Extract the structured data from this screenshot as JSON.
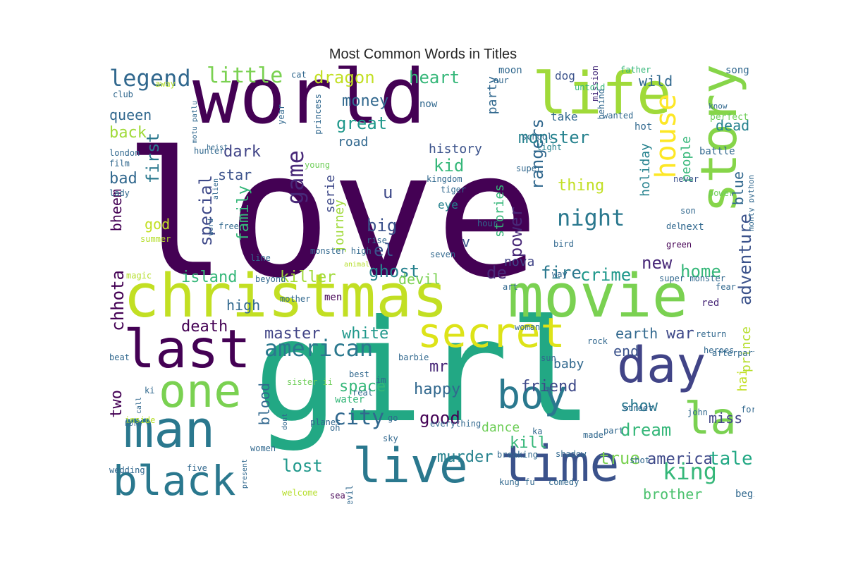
{
  "chart_data": {
    "type": "wordcloud",
    "title": "Most Common Words in Titles",
    "words": [
      {
        "text": "love",
        "color": "#440154"
      },
      {
        "text": "girl",
        "color": "#22a884"
      },
      {
        "text": "world",
        "color": "#440154"
      },
      {
        "text": "christmas",
        "color": "#c2df23"
      },
      {
        "text": "movie",
        "color": "#7ad151"
      },
      {
        "text": "life",
        "color": "#a0da39"
      },
      {
        "text": "story",
        "color": "#86d549"
      },
      {
        "text": "time",
        "color": "#3b528b"
      },
      {
        "text": "live",
        "color": "#2a788e"
      },
      {
        "text": "man",
        "color": "#2a788e"
      },
      {
        "text": "black",
        "color": "#2a788e"
      },
      {
        "text": "day",
        "color": "#414487"
      },
      {
        "text": "one",
        "color": "#7ad151"
      },
      {
        "text": "last",
        "color": "#440154"
      },
      {
        "text": "secret",
        "color": "#dde318"
      },
      {
        "text": "boy",
        "color": "#2a788e"
      },
      {
        "text": "house",
        "color": "#fde725"
      },
      {
        "text": "la",
        "color": "#7ad151"
      },
      {
        "text": "legend",
        "color": "#31688e"
      },
      {
        "text": "little",
        "color": "#7ad151"
      },
      {
        "text": "american",
        "color": "#2a788e"
      },
      {
        "text": "night",
        "color": "#2a788e"
      },
      {
        "text": "game",
        "color": "#482878"
      },
      {
        "text": "city",
        "color": "#31688e"
      },
      {
        "text": "king",
        "color": "#35b779"
      },
      {
        "text": "tale",
        "color": "#22a884"
      },
      {
        "text": "adventure",
        "color": "#3b528b"
      },
      {
        "text": "rangers",
        "color": "#31688e"
      },
      {
        "text": "power",
        "color": "#482878"
      },
      {
        "text": "dragon",
        "color": "#c2df23"
      },
      {
        "text": "heart",
        "color": "#35b779"
      },
      {
        "text": "money",
        "color": "#31688e"
      },
      {
        "text": "great",
        "color": "#1f988b"
      },
      {
        "text": "kid",
        "color": "#35b779"
      },
      {
        "text": "monster",
        "color": "#26828e"
      },
      {
        "text": "dark",
        "color": "#414487"
      },
      {
        "text": "star",
        "color": "#3b528b"
      },
      {
        "text": "first",
        "color": "#2a788e"
      },
      {
        "text": "special",
        "color": "#3e4989"
      },
      {
        "text": "family",
        "color": "#35b779"
      },
      {
        "text": "big",
        "color": "#3b528b"
      },
      {
        "text": "el",
        "color": "#3b528b"
      },
      {
        "text": "u",
        "color": "#3e4989"
      },
      {
        "text": "ghost",
        "color": "#26828e"
      },
      {
        "text": "de",
        "color": "#482878"
      },
      {
        "text": "fire",
        "color": "#2a788e"
      },
      {
        "text": "crime",
        "color": "#1f988b"
      },
      {
        "text": "home",
        "color": "#35b779"
      },
      {
        "text": "new",
        "color": "#482878"
      },
      {
        "text": "queen",
        "color": "#31688e"
      },
      {
        "text": "back",
        "color": "#a0da39"
      },
      {
        "text": "bad",
        "color": "#31688e"
      },
      {
        "text": "god",
        "color": "#c2df23"
      },
      {
        "text": "bheem",
        "color": "#440154"
      },
      {
        "text": "chhota",
        "color": "#440154"
      },
      {
        "text": "island",
        "color": "#35b779"
      },
      {
        "text": "killer",
        "color": "#a0da39"
      },
      {
        "text": "devil",
        "color": "#7ad151"
      },
      {
        "text": "high",
        "color": "#31688e"
      },
      {
        "text": "death",
        "color": "#440154"
      },
      {
        "text": "master",
        "color": "#414487"
      },
      {
        "text": "white",
        "color": "#1f988b"
      },
      {
        "text": "war",
        "color": "#3e4989"
      },
      {
        "text": "earth",
        "color": "#31688e"
      },
      {
        "text": "end",
        "color": "#3b528b"
      },
      {
        "text": "mr",
        "color": "#482878"
      },
      {
        "text": "space",
        "color": "#35b779"
      },
      {
        "text": "happy",
        "color": "#31688e"
      },
      {
        "text": "friend",
        "color": "#3e4989"
      },
      {
        "text": "good",
        "color": "#440154"
      },
      {
        "text": "show",
        "color": "#2a788e"
      },
      {
        "text": "dream",
        "color": "#35b779"
      },
      {
        "text": "miss",
        "color": "#414487"
      },
      {
        "text": "america",
        "color": "#3e4989"
      },
      {
        "text": "true",
        "color": "#7ad151"
      },
      {
        "text": "murder",
        "color": "#26828e"
      },
      {
        "text": "kill",
        "color": "#35b779"
      },
      {
        "text": "dance",
        "color": "#6ece58"
      },
      {
        "text": "lost",
        "color": "#1f988b"
      },
      {
        "text": "blood",
        "color": "#31688e"
      },
      {
        "text": "two",
        "color": "#440154"
      },
      {
        "text": "brother",
        "color": "#4ac16d"
      },
      {
        "text": "thing",
        "color": "#c2df23"
      },
      {
        "text": "wild",
        "color": "#31688e"
      },
      {
        "text": "dead",
        "color": "#26828e"
      },
      {
        "text": "people",
        "color": "#35b779"
      },
      {
        "text": "blue",
        "color": "#31688e"
      },
      {
        "text": "holiday",
        "color": "#26828e"
      },
      {
        "text": "stories",
        "color": "#35b779"
      },
      {
        "text": "journey",
        "color": "#a0da39"
      },
      {
        "text": "serie",
        "color": "#3e4989"
      },
      {
        "text": "party",
        "color": "#31688e"
      },
      {
        "text": "road",
        "color": "#31688e"
      },
      {
        "text": "history",
        "color": "#3b528b"
      },
      {
        "text": "nova",
        "color": "#414487"
      },
      {
        "text": "prince",
        "color": "#b5de2b"
      },
      {
        "text": "hai",
        "color": "#c2df23"
      },
      {
        "text": "baby",
        "color": "#31688e"
      },
      {
        "text": "v",
        "color": "#3b528b"
      },
      {
        "text": "eye",
        "color": "#26828e"
      },
      {
        "text": "next",
        "color": "#31688e"
      },
      {
        "text": "song",
        "color": "#31688e"
      },
      {
        "text": "dog",
        "color": "#3b528b"
      },
      {
        "text": "moon",
        "color": "#31688e"
      },
      {
        "text": "mission",
        "color": "#472d7b"
      },
      {
        "text": "father",
        "color": "#35b779"
      },
      {
        "text": "now",
        "color": "#31688e"
      },
      {
        "text": "take",
        "color": "#31688e"
      },
      {
        "text": "hot",
        "color": "#31688e"
      },
      {
        "text": "battle",
        "color": "#31688e"
      },
      {
        "text": "know",
        "color": "#31688e"
      },
      {
        "text": "perfect",
        "color": "#6ece58"
      },
      {
        "text": "school",
        "color": "#31688e"
      },
      {
        "text": "light",
        "color": "#26828e"
      },
      {
        "text": "never",
        "color": "#3b528b"
      },
      {
        "text": "power",
        "color": "#6ece58"
      },
      {
        "text": "monty python",
        "color": "#31688e"
      },
      {
        "text": "super",
        "color": "#31688e"
      },
      {
        "text": "tiger",
        "color": "#31688e"
      },
      {
        "text": "kingdom",
        "color": "#31688e"
      },
      {
        "text": "son",
        "color": "#31688e"
      },
      {
        "text": "green",
        "color": "#440154"
      },
      {
        "text": "del",
        "color": "#31688e"
      },
      {
        "text": "bird",
        "color": "#31688e"
      },
      {
        "text": "hour",
        "color": "#31688e"
      },
      {
        "text": "rise",
        "color": "#31688e"
      },
      {
        "text": "seven",
        "color": "#31688e"
      },
      {
        "text": "line",
        "color": "#31688e"
      },
      {
        "text": "animal",
        "color": "#b5de2b"
      },
      {
        "text": "men",
        "color": "#440154"
      },
      {
        "text": "way",
        "color": "#31688e"
      },
      {
        "text": "art",
        "color": "#31688e"
      },
      {
        "text": "super monster",
        "color": "#31688e"
      },
      {
        "text": "fear",
        "color": "#31688e"
      },
      {
        "text": "red",
        "color": "#482878"
      },
      {
        "text": "woman",
        "color": "#31688e"
      },
      {
        "text": "return",
        "color": "#31688e"
      },
      {
        "text": "rock",
        "color": "#31688e"
      },
      {
        "text": "heroes",
        "color": "#31688e"
      },
      {
        "text": "sun",
        "color": "#31688e"
      },
      {
        "text": "afterparty",
        "color": "#31688e"
      },
      {
        "text": "barbie",
        "color": "#31688e"
      },
      {
        "text": "best",
        "color": "#31688e"
      },
      {
        "text": "im",
        "color": "#31688e"
      },
      {
        "text": "sister ii",
        "color": "#6ece58"
      },
      {
        "text": "real",
        "color": "#31688e"
      },
      {
        "text": "water",
        "color": "#35b779"
      },
      {
        "text": "go",
        "color": "#31688e"
      },
      {
        "text": "planet",
        "color": "#31688e"
      },
      {
        "text": "everything",
        "color": "#31688e"
      },
      {
        "text": "sky",
        "color": "#31688e"
      },
      {
        "text": "oh",
        "color": "#31688e"
      },
      {
        "text": "ka",
        "color": "#31688e"
      },
      {
        "text": "shadow",
        "color": "#31688e"
      },
      {
        "text": "breaking",
        "color": "#31688e"
      },
      {
        "text": "kung fu",
        "color": "#31688e"
      },
      {
        "text": "comedy",
        "color": "#31688e"
      },
      {
        "text": "made",
        "color": "#31688e"
      },
      {
        "text": "part",
        "color": "#31688e"
      },
      {
        "text": "shot",
        "color": "#31688e"
      },
      {
        "text": "john",
        "color": "#31688e"
      },
      {
        "text": "street",
        "color": "#31688e"
      },
      {
        "text": "force",
        "color": "#31688e"
      },
      {
        "text": "beginning",
        "color": "#31688e"
      },
      {
        "text": "welcome",
        "color": "#b5de2b"
      },
      {
        "text": "sea",
        "color": "#440154"
      },
      {
        "text": "evil",
        "color": "#31688e"
      },
      {
        "text": "five",
        "color": "#31688e"
      },
      {
        "text": "present",
        "color": "#31688e"
      },
      {
        "text": "wedding",
        "color": "#31688e"
      },
      {
        "text": "women",
        "color": "#31688e"
      },
      {
        "text": "inside",
        "color": "#b5de2b"
      },
      {
        "text": "born",
        "color": "#31688e"
      },
      {
        "text": "call",
        "color": "#31688e"
      },
      {
        "text": "dont",
        "color": "#31688e"
      },
      {
        "text": "ki",
        "color": "#31688e"
      },
      {
        "text": "beat",
        "color": "#31688e"
      },
      {
        "text": "beyond",
        "color": "#31688e"
      },
      {
        "text": "mother",
        "color": "#31688e"
      },
      {
        "text": "magic",
        "color": "#b5de2b"
      },
      {
        "text": "summer",
        "color": "#b5de2b"
      },
      {
        "text": "monster high",
        "color": "#31688e"
      },
      {
        "text": "free",
        "color": "#31688e"
      },
      {
        "text": "word",
        "color": "#31688e"
      },
      {
        "text": "alien",
        "color": "#31688e"
      },
      {
        "text": "lady",
        "color": "#31688e"
      },
      {
        "text": "film",
        "color": "#31688e"
      },
      {
        "text": "london",
        "color": "#31688e"
      },
      {
        "text": "hunter",
        "color": "#31688e"
      },
      {
        "text": "heist",
        "color": "#31688e"
      },
      {
        "text": "motu patlu",
        "color": "#31688e"
      },
      {
        "text": "princess",
        "color": "#31688e"
      },
      {
        "text": "year",
        "color": "#31688e"
      },
      {
        "text": "young",
        "color": "#6ece58"
      },
      {
        "text": "club",
        "color": "#31688e"
      },
      {
        "text": "away",
        "color": "#b5de2b"
      },
      {
        "text": "cat",
        "color": "#31688e"
      },
      {
        "text": "aur",
        "color": "#31688e"
      },
      {
        "text": "untold",
        "color": "#35b779"
      },
      {
        "text": "behind",
        "color": "#31688e"
      },
      {
        "text": "wanted",
        "color": "#31688e"
      }
    ]
  }
}
